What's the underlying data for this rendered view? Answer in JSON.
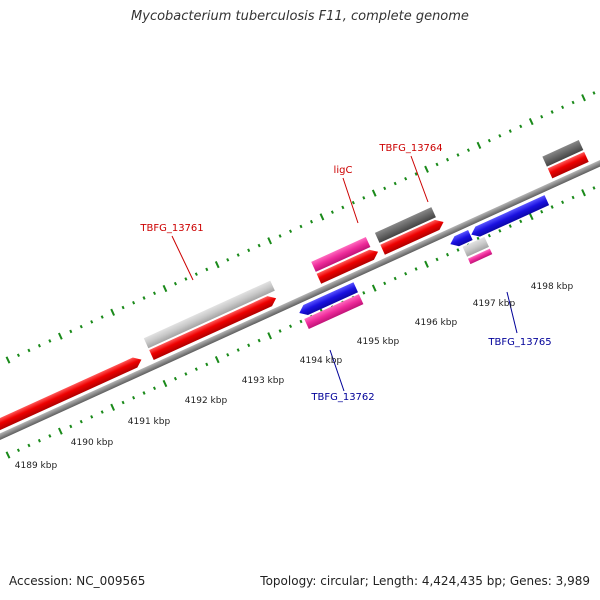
{
  "title": "Mycobacterium tuberculosis F11, complete genome",
  "footer": {
    "accession_label": "Accession:",
    "accession": "NC_009565",
    "topology_label": "Topology:",
    "topology": "circular;",
    "length_label": "Length:",
    "length": "4,424,435 bp;",
    "genes_label": "Genes:",
    "genes": "3,989"
  },
  "colors": {
    "forward_strand_label": "#cc0000",
    "reverse_strand_label": "#000099",
    "red_gene": "#ee0000",
    "light_gray_gene": "#c8c8c8",
    "dark_gray_gene": "#666666",
    "magenta_gene": "#ee2a9a",
    "blue_gene": "#1a10e0",
    "tick": "#1a8a1a",
    "backbone": "#8a8a8a"
  },
  "ticks": [
    {
      "label": "4189 kbp"
    },
    {
      "label": "4190 kbp"
    },
    {
      "label": "4191 kbp"
    },
    {
      "label": "4192 kbp"
    },
    {
      "label": "4193 kbp"
    },
    {
      "label": "4194 kbp"
    },
    {
      "label": "4195 kbp"
    },
    {
      "label": "4196 kbp"
    },
    {
      "label": "4197 kbp"
    },
    {
      "label": "4198 kbp"
    }
  ],
  "gene_labels": [
    {
      "text": "TBFG_13761",
      "strand": "forward"
    },
    {
      "text": "ligC",
      "strand": "forward"
    },
    {
      "text": "TBFG_13764",
      "strand": "forward"
    },
    {
      "text": "TBFG_13762",
      "strand": "reverse"
    },
    {
      "text": "TBFG_13765",
      "strand": "reverse"
    }
  ]
}
